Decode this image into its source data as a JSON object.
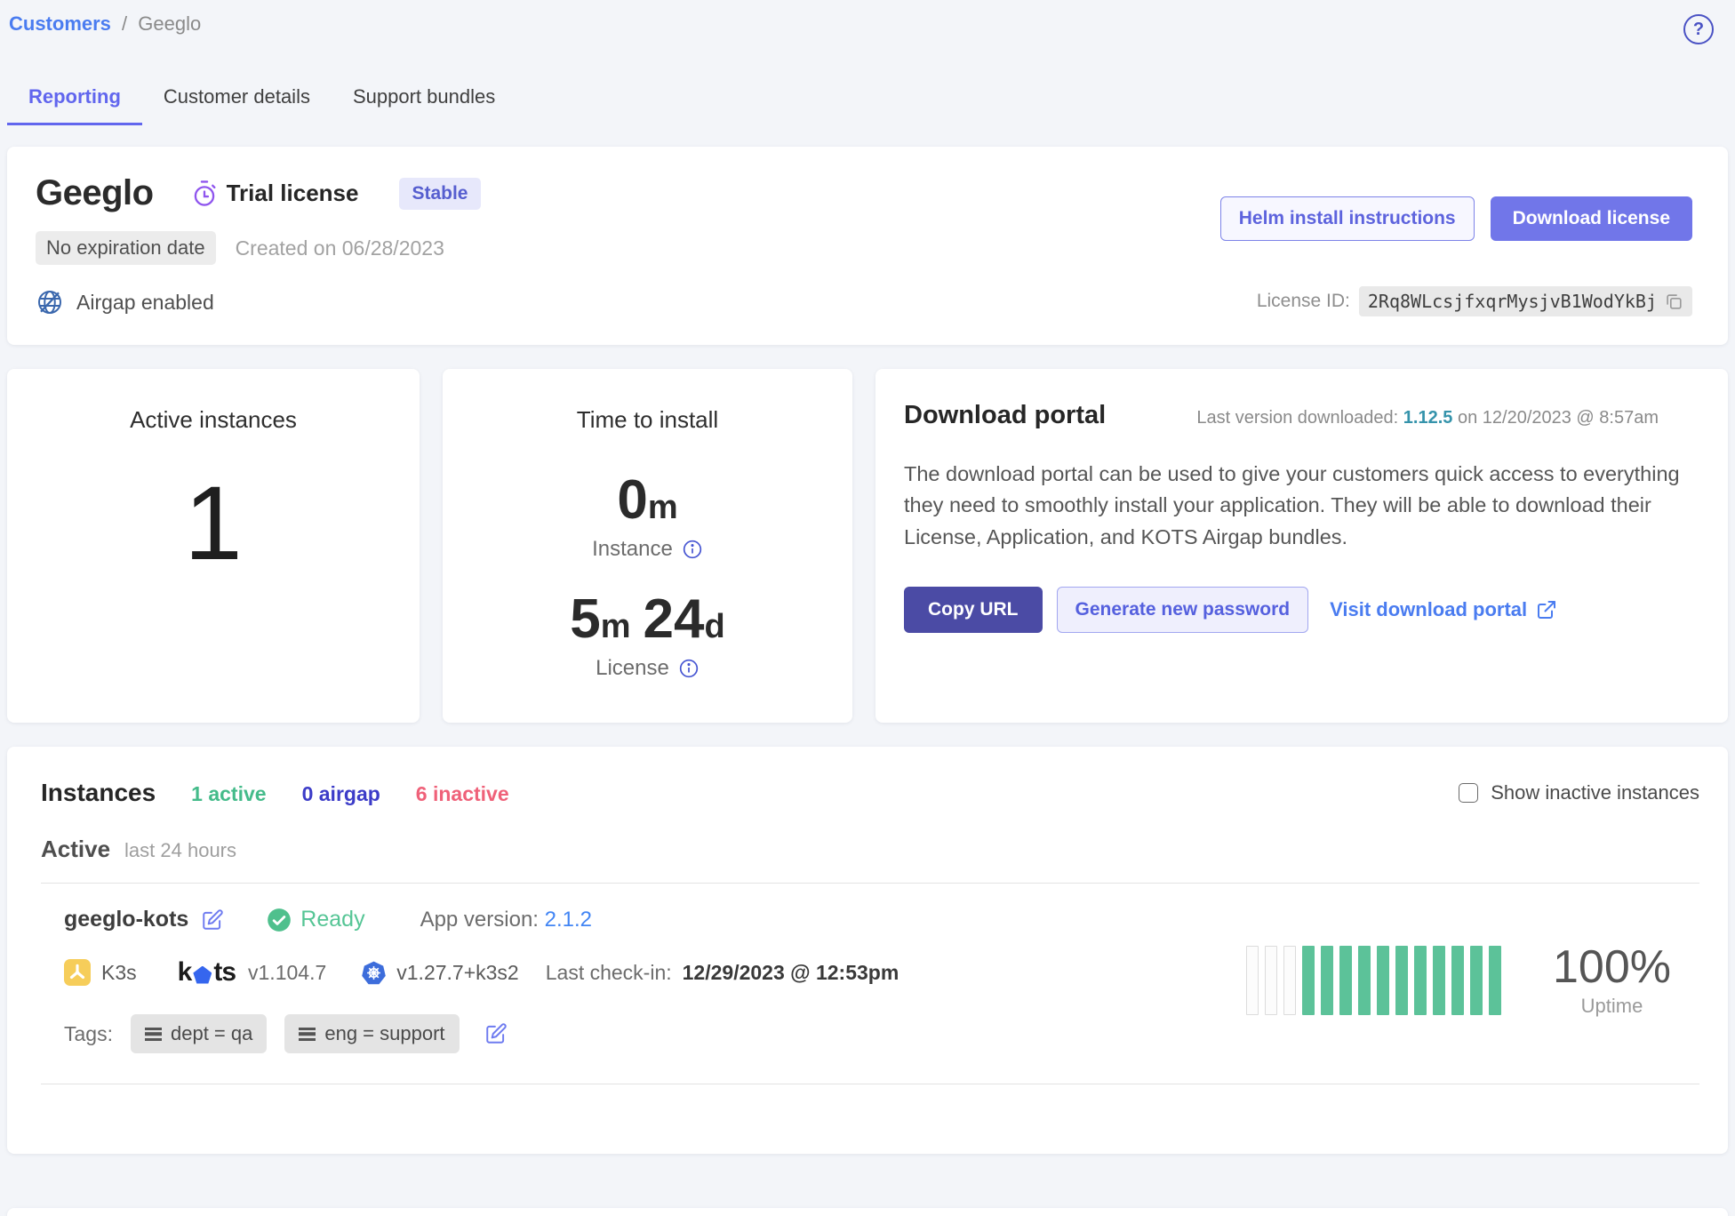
{
  "breadcrumb": {
    "customers": "Customers",
    "separator": "/",
    "current": "Geeglo"
  },
  "help": {
    "glyph": "?"
  },
  "tabs": [
    {
      "label": "Reporting",
      "active": true
    },
    {
      "label": "Customer details",
      "active": false
    },
    {
      "label": "Support bundles",
      "active": false
    }
  ],
  "customer_card": {
    "name": "Geeglo",
    "license_type": "Trial license",
    "channel_badge": "Stable",
    "expiration_badge": "No expiration date",
    "created": "Created on 06/28/2023",
    "airgap_label": "Airgap enabled",
    "helm_button": "Helm install instructions",
    "download_button": "Download license",
    "license_id_label": "License ID:",
    "license_id": "2Rq8WLcsjfxqrMysjvB1WodYkBj"
  },
  "active_instances_card": {
    "title": "Active instances",
    "value": "1"
  },
  "time_to_install_card": {
    "title": "Time to install",
    "instance_value": "0",
    "instance_unit": "m",
    "instance_label": "Instance",
    "license_value1": "5",
    "license_unit1": "m",
    "license_value2": "24",
    "license_unit2": "d",
    "license_label": "License"
  },
  "download_portal_card": {
    "title": "Download portal",
    "last_version_prefix": "Last version downloaded:",
    "last_version": "1.12.5",
    "last_version_suffix": "on 12/20/2023 @ 8:57am",
    "description": "The download portal can be used to give your customers quick access to everything they need to smoothly install your application. They will be able to download their License, Application, and KOTS Airgap bundles.",
    "copy_url_button": "Copy URL",
    "generate_password_button": "Generate new password",
    "visit_portal_link": "Visit download portal"
  },
  "instances_section": {
    "title": "Instances",
    "active_count": "1 active",
    "airgap_count": "0 airgap",
    "inactive_count": "6 inactive",
    "show_inactive_label": "Show inactive instances",
    "active_label": "Active",
    "period": "last 24 hours",
    "instance": {
      "name": "geeglo-kots",
      "status": "Ready",
      "app_version_label": "App version:",
      "app_version": "2.1.2",
      "cluster_type": "K3s",
      "kots_word": {
        "k": "k",
        "ts": "ts"
      },
      "kots_version": "v1.104.7",
      "k8s_version": "v1.27.7+k3s2",
      "last_checkin_label": "Last check-in:",
      "last_checkin": "12/29/2023 @ 12:53pm",
      "tags_label": "Tags:",
      "tags": [
        "dept = qa",
        "eng = support"
      ],
      "uptime": {
        "percent": "100%",
        "label": "Uptime",
        "bars": [
          0,
          0,
          0,
          1,
          1,
          1,
          1,
          1,
          1,
          1,
          1,
          1,
          1,
          1
        ]
      }
    }
  },
  "colors": {
    "accent_indigo": "#6166ee",
    "link_blue": "#4a7cf0",
    "purple_icon": "#8f55ee",
    "stable_badge_bg": "#e7e8fb",
    "stable_badge_text": "#565ecf",
    "download_button_bg": "#7176e9",
    "copy_url_bg": "#4b4ba5",
    "teal_version": "#3593ab",
    "green_status": "#55c595",
    "uptime_green": "#5cc299",
    "inactive_pink": "#ef6179",
    "airgap_indigo": "#3c3cc8",
    "k3s_yellow": "#f6cd5a",
    "kubernetes_blue": "#3d6ddb"
  }
}
